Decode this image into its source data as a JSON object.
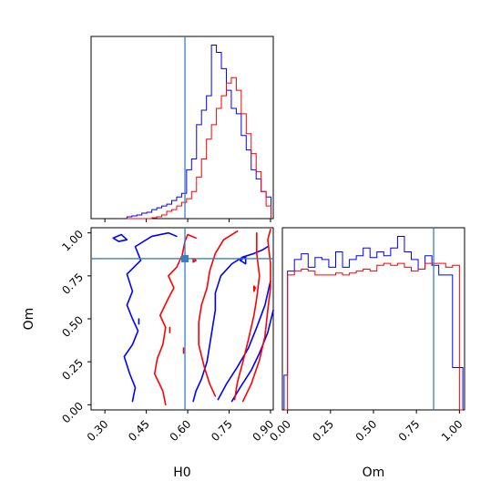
{
  "colors": {
    "chain_a": "#0000ff",
    "chain_b": "#ff0000",
    "truth": "#3a7ebf"
  },
  "chart_data": [
    {
      "type": "histogram",
      "panel": "H0 marginal",
      "xlim": [
        0.25,
        0.91
      ],
      "bin_edges": [
        0.38,
        0.398,
        0.416,
        0.434,
        0.452,
        0.47,
        0.488,
        0.506,
        0.524,
        0.542,
        0.56,
        0.578,
        0.596,
        0.614,
        0.632,
        0.65,
        0.668,
        0.686,
        0.704,
        0.722,
        0.74,
        0.758,
        0.776,
        0.794,
        0.812,
        0.83,
        0.848,
        0.866,
        0.884,
        0.902
      ],
      "series": [
        {
          "color": "blue",
          "values": [
            0.01,
            0.015,
            0.02,
            0.03,
            0.035,
            0.05,
            0.06,
            0.07,
            0.08,
            0.1,
            0.12,
            0.14,
            0.27,
            0.33,
            0.52,
            0.6,
            0.68,
            0.96,
            0.92,
            0.83,
            0.71,
            0.61,
            0.58,
            0.46,
            0.38,
            0.27,
            0.22,
            0.15,
            0.12
          ]
        },
        {
          "color": "red",
          "values": [
            0,
            0,
            0,
            0,
            0,
            0.005,
            0.01,
            0.02,
            0.04,
            0.05,
            0.07,
            0.09,
            0.11,
            0.15,
            0.23,
            0.33,
            0.44,
            0.52,
            0.61,
            0.68,
            0.75,
            0.78,
            0.71,
            0.58,
            0.47,
            0.36,
            0.26,
            0.15,
            0.07
          ]
        }
      ],
      "truth": 0.59
    },
    {
      "type": "contour",
      "panel": "H0 vs Om",
      "xlabel": "H0",
      "ylabel": "Om",
      "xlim": [
        0.25,
        0.91
      ],
      "ylim": [
        -0.03,
        1.03
      ],
      "xticks": [
        "0.30",
        "0.45",
        "0.60",
        "0.75",
        "0.90"
      ],
      "yticks": [
        "0.00",
        "0.25",
        "0.50",
        "0.75",
        "1.00"
      ],
      "truth": {
        "x": 0.59,
        "y": 0.85
      },
      "contours": [
        {
          "color": "blue",
          "points": [
            [
              0.4,
              0.02
            ],
            [
              0.41,
              0.1
            ],
            [
              0.39,
              0.18
            ],
            [
              0.37,
              0.28
            ],
            [
              0.4,
              0.35
            ],
            [
              0.42,
              0.43
            ],
            [
              0.4,
              0.5
            ],
            [
              0.38,
              0.58
            ],
            [
              0.4,
              0.66
            ],
            [
              0.38,
              0.76
            ],
            [
              0.43,
              0.84
            ],
            [
              0.41,
              0.92
            ],
            [
              0.47,
              0.98
            ],
            [
              0.53,
              1.0
            ],
            [
              0.56,
              0.98
            ]
          ]
        },
        {
          "color": "blue",
          "points": [
            [
              0.62,
              0.02
            ],
            [
              0.63,
              0.08
            ],
            [
              0.65,
              0.15
            ],
            [
              0.67,
              0.25
            ],
            [
              0.68,
              0.35
            ],
            [
              0.69,
              0.45
            ],
            [
              0.7,
              0.55
            ],
            [
              0.7,
              0.65
            ],
            [
              0.72,
              0.75
            ],
            [
              0.76,
              0.82
            ],
            [
              0.8,
              0.86
            ],
            [
              0.84,
              0.88
            ],
            [
              0.87,
              0.9
            ],
            [
              0.89,
              0.92
            ]
          ]
        },
        {
          "color": "blue",
          "points": [
            [
              0.71,
              0.03
            ],
            [
              0.74,
              0.12
            ],
            [
              0.78,
              0.22
            ],
            [
              0.82,
              0.33
            ],
            [
              0.85,
              0.45
            ],
            [
              0.88,
              0.58
            ],
            [
              0.9,
              0.72
            ]
          ]
        },
        {
          "color": "blue",
          "points": [
            [
              0.76,
              0.02
            ],
            [
              0.79,
              0.1
            ],
            [
              0.83,
              0.2
            ],
            [
              0.86,
              0.3
            ],
            [
              0.89,
              0.42
            ],
            [
              0.91,
              0.55
            ]
          ]
        },
        {
          "color": "blue",
          "points": [
            [
              0.33,
              0.97
            ],
            [
              0.36,
              0.99
            ],
            [
              0.38,
              0.96
            ],
            [
              0.35,
              0.95
            ],
            [
              0.33,
              0.97
            ]
          ]
        },
        {
          "color": "blue",
          "points": [
            [
              0.423,
              0.5
            ],
            [
              0.423,
              0.47
            ]
          ]
        },
        {
          "color": "blue",
          "points": [
            [
              0.79,
              0.84
            ],
            [
              0.81,
              0.86
            ],
            [
              0.81,
              0.82
            ],
            [
              0.79,
              0.84
            ]
          ]
        },
        {
          "color": "red",
          "points": [
            [
              0.52,
              0.0
            ],
            [
              0.51,
              0.08
            ],
            [
              0.48,
              0.18
            ],
            [
              0.49,
              0.27
            ],
            [
              0.51,
              0.35
            ],
            [
              0.52,
              0.45
            ],
            [
              0.5,
              0.52
            ],
            [
              0.53,
              0.62
            ],
            [
              0.55,
              0.68
            ],
            [
              0.53,
              0.75
            ],
            [
              0.56,
              0.8
            ],
            [
              0.58,
              0.87
            ],
            [
              0.59,
              0.95
            ],
            [
              0.6,
              0.99
            ],
            [
              0.63,
              0.97
            ]
          ]
        },
        {
          "color": "red",
          "points": [
            [
              0.7,
              0.05
            ],
            [
              0.68,
              0.12
            ],
            [
              0.66,
              0.22
            ],
            [
              0.64,
              0.35
            ],
            [
              0.64,
              0.48
            ],
            [
              0.65,
              0.58
            ],
            [
              0.67,
              0.68
            ],
            [
              0.68,
              0.78
            ],
            [
              0.7,
              0.88
            ],
            [
              0.73,
              0.96
            ],
            [
              0.78,
              1.01
            ]
          ]
        },
        {
          "color": "red",
          "points": [
            [
              0.77,
              0.03
            ],
            [
              0.78,
              0.13
            ],
            [
              0.8,
              0.25
            ],
            [
              0.82,
              0.38
            ],
            [
              0.84,
              0.52
            ],
            [
              0.85,
              0.62
            ],
            [
              0.86,
              0.75
            ],
            [
              0.85,
              0.88
            ],
            [
              0.85,
              1.0
            ]
          ]
        },
        {
          "color": "red",
          "points": [
            [
              0.8,
              0.02
            ],
            [
              0.83,
              0.12
            ],
            [
              0.86,
              0.26
            ],
            [
              0.88,
              0.4
            ],
            [
              0.89,
              0.55
            ],
            [
              0.9,
              0.68
            ],
            [
              0.9,
              0.82
            ],
            [
              0.89,
              0.96
            ],
            [
              0.9,
              1.02
            ]
          ]
        },
        {
          "color": "red",
          "points": [
            [
              0.535,
              0.45
            ],
            [
              0.535,
              0.42
            ]
          ]
        },
        {
          "color": "red",
          "points": [
            [
              0.585,
              0.33
            ],
            [
              0.585,
              0.3
            ]
          ]
        },
        {
          "color": "red",
          "points": [
            [
              0.62,
              0.83
            ],
            [
              0.63,
              0.84
            ],
            [
              0.62,
              0.85
            ],
            [
              0.62,
              0.83
            ]
          ]
        },
        {
          "color": "red",
          "points": [
            [
              0.84,
              0.66
            ],
            [
              0.845,
              0.68
            ],
            [
              0.84,
              0.69
            ],
            [
              0.84,
              0.66
            ]
          ]
        }
      ]
    },
    {
      "type": "histogram",
      "panel": "Om marginal",
      "xlabel": "Om",
      "xlim": [
        -0.03,
        1.03
      ],
      "xticks": [
        "0.00",
        "0.25",
        "0.50",
        "0.75",
        "1.00"
      ],
      "bin_edges": [
        -0.02,
        0.0,
        0.04,
        0.08,
        0.12,
        0.16,
        0.2,
        0.24,
        0.28,
        0.32,
        0.36,
        0.4,
        0.44,
        0.48,
        0.52,
        0.56,
        0.6,
        0.64,
        0.68,
        0.72,
        0.76,
        0.8,
        0.84,
        0.88,
        0.92,
        0.96,
        1.0,
        1.02
      ],
      "series": [
        {
          "color": "blue",
          "values": [
            0.18,
            0.72,
            0.78,
            0.81,
            0.74,
            0.79,
            0.78,
            0.74,
            0.82,
            0.74,
            0.78,
            0.8,
            0.84,
            0.79,
            0.82,
            0.8,
            0.84,
            0.9,
            0.82,
            0.78,
            0.73,
            0.8,
            0.75,
            0.7,
            0.7,
            0.22,
            0.22
          ]
        },
        {
          "color": "red",
          "values": [
            0.0,
            0.7,
            0.72,
            0.73,
            0.72,
            0.7,
            0.7,
            0.7,
            0.71,
            0.7,
            0.71,
            0.72,
            0.73,
            0.72,
            0.75,
            0.76,
            0.75,
            0.76,
            0.74,
            0.72,
            0.73,
            0.76,
            0.76,
            0.76,
            0.74,
            0.75,
            0.0
          ]
        }
      ],
      "truth": 0.85
    }
  ]
}
